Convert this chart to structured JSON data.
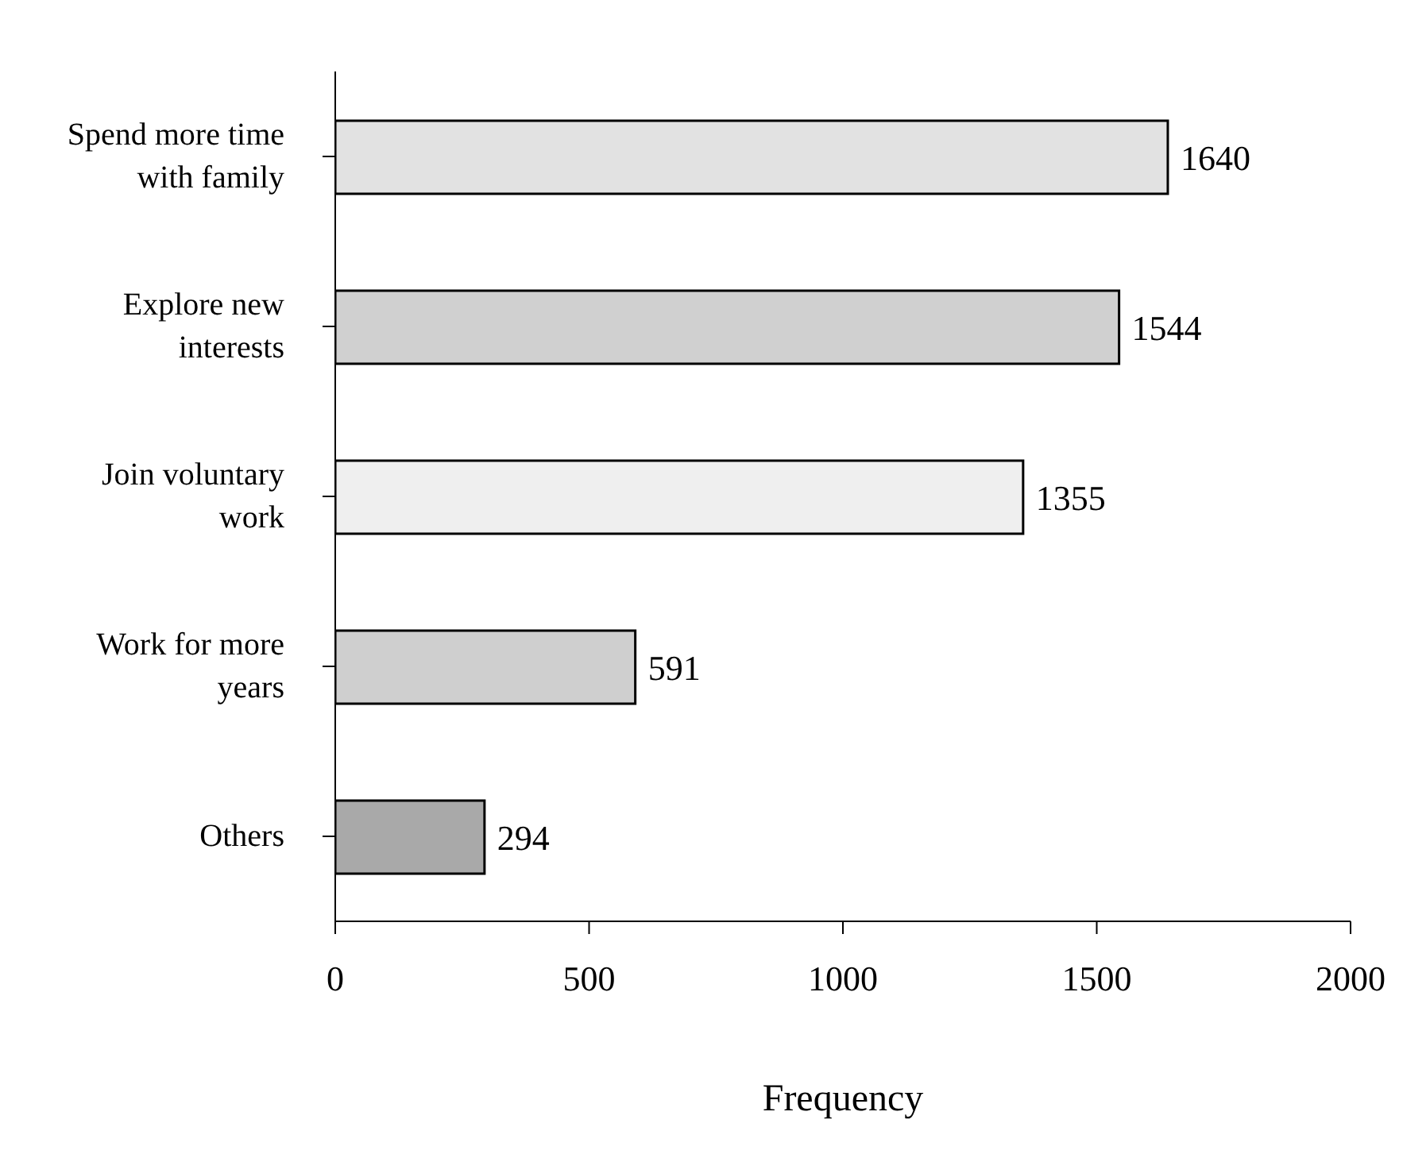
{
  "chart_data": {
    "type": "bar",
    "orientation": "horizontal",
    "xlabel": "Frequency",
    "categories": [
      "Spend more time with family",
      "Explore new interests",
      "Join voluntary work",
      "Work for more years",
      "Others"
    ],
    "values": [
      1640,
      1544,
      1355,
      591,
      294
    ],
    "colors": [
      "#e2e2e2",
      "#d0d0d0",
      "#efefef",
      "#cfcfcf",
      "#a9a9a9"
    ],
    "xlim": [
      0,
      2000
    ],
    "xticks": [
      0,
      500,
      1000,
      1500,
      2000
    ],
    "data_labels": true,
    "grid": false
  }
}
